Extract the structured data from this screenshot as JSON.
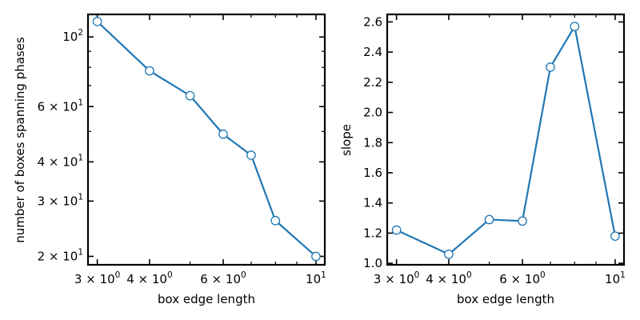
{
  "chart_data": [
    {
      "type": "line",
      "xscale": "log",
      "yscale": "log",
      "xlabel": "box edge length",
      "ylabel": "number of boxes spanning phases",
      "xlim": [
        2.85,
        10.5
      ],
      "ylim": [
        18.8,
        118
      ],
      "grid": false,
      "color": "#1f77b4",
      "x": [
        3,
        4,
        5,
        6,
        7,
        8,
        10
      ],
      "y": [
        112,
        78,
        65,
        49,
        42,
        26,
        20
      ],
      "xticks": [
        {
          "value": 3,
          "base": "3 × 10",
          "exp": "0"
        },
        {
          "value": 4,
          "base": "4 × 10",
          "exp": "0"
        },
        {
          "value": 6,
          "base": "6 × 10",
          "exp": "0"
        },
        {
          "value": 10,
          "base": "10",
          "exp": "1"
        }
      ],
      "yticks": [
        {
          "value": 20,
          "base": "2 × 10",
          "exp": "1"
        },
        {
          "value": 30,
          "base": "3 × 10",
          "exp": "1"
        },
        {
          "value": 40,
          "base": "4 × 10",
          "exp": "1"
        },
        {
          "value": 60,
          "base": "6 × 10",
          "exp": "1"
        },
        {
          "value": 100,
          "base": "10",
          "exp": "2"
        }
      ]
    },
    {
      "type": "line",
      "xscale": "log",
      "yscale": "linear",
      "xlabel": "box edge length",
      "ylabel": "slope",
      "xlim": [
        2.85,
        10.5
      ],
      "ylim": [
        0.99,
        2.65
      ],
      "grid": false,
      "color": "#1f77b4",
      "x": [
        3,
        4,
        5,
        6,
        7,
        8,
        10
      ],
      "y": [
        1.22,
        1.06,
        1.29,
        1.28,
        2.3,
        2.57,
        1.18
      ],
      "xticks": [
        {
          "value": 3,
          "base": "3 × 10",
          "exp": "0"
        },
        {
          "value": 4,
          "base": "4 × 10",
          "exp": "0"
        },
        {
          "value": 6,
          "base": "6 × 10",
          "exp": "0"
        },
        {
          "value": 10,
          "base": "10",
          "exp": "1"
        }
      ],
      "yticks": [
        {
          "value": 1.0,
          "label": "1.0"
        },
        {
          "value": 1.2,
          "label": "1.2"
        },
        {
          "value": 1.4,
          "label": "1.4"
        },
        {
          "value": 1.6,
          "label": "1.6"
        },
        {
          "value": 1.8,
          "label": "1.8"
        },
        {
          "value": 2.0,
          "label": "2.0"
        },
        {
          "value": 2.2,
          "label": "2.2"
        },
        {
          "value": 2.4,
          "label": "2.4"
        },
        {
          "value": 2.6,
          "label": "2.6"
        }
      ]
    }
  ]
}
